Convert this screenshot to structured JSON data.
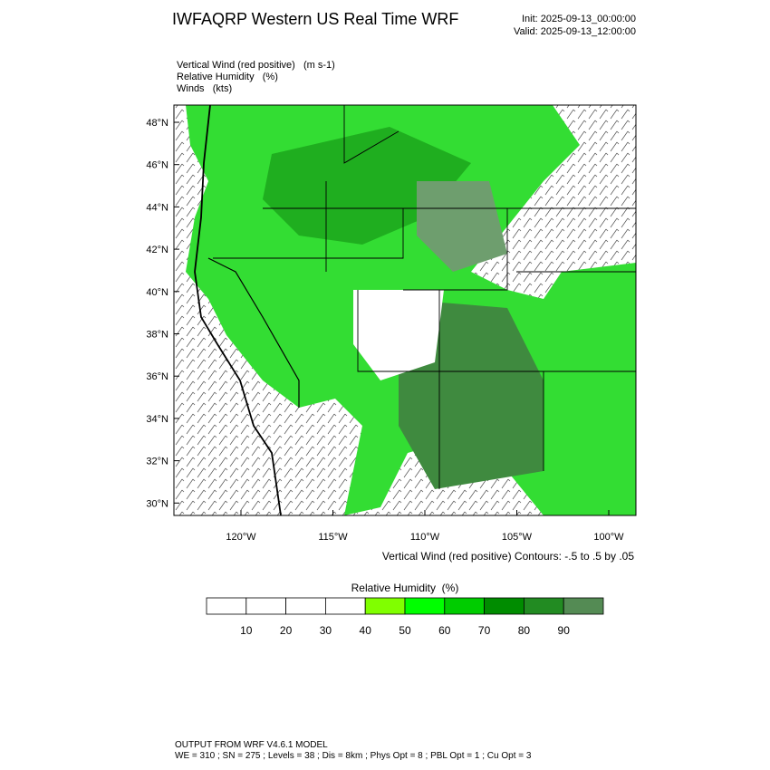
{
  "header": {
    "title": "IWFAQRP Western US Real Time WRF",
    "init": "Init: 2025-09-13_00:00:00",
    "valid": "Valid: 2025-09-13_12:00:00"
  },
  "fields": [
    "Vertical Wind (red positive)   (m s-1)",
    "Relative Humidity   (%)",
    "Winds   (kts)"
  ],
  "map": {
    "lat_labels": [
      "48°N",
      "46°N",
      "44°N",
      "42°N",
      "40°N",
      "38°N",
      "36°N",
      "34°N",
      "32°N",
      "30°N"
    ],
    "lon_labels": [
      "120°W",
      "115°W",
      "110°W",
      "105°W",
      "100°W"
    ],
    "caption": "Vertical Wind (red positive) Contours: -.5 to .5 by .05"
  },
  "colorbar": {
    "title": "Relative Humidity  (%)",
    "colors": [
      "#ffffff",
      "#ffffff",
      "#ffffff",
      "#ffffff",
      "#80ff00",
      "#00ff00",
      "#00cc00",
      "#008c00",
      "#228b22",
      "#548b54"
    ],
    "labels": [
      10,
      20,
      30,
      40,
      50,
      60,
      70,
      80,
      90
    ]
  },
  "footer": {
    "line1": "OUTPUT FROM WRF V4.6.1 MODEL",
    "line2": "WE = 310 ; SN = 275 ; Levels = 38 ; Dis = 8km ; Phys Opt = 8 ; PBL Opt = 1 ; Cu Opt = 3"
  }
}
